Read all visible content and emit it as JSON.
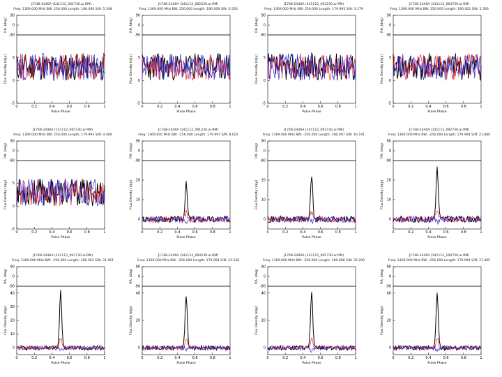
{
  "figure": {
    "description_rows": "Pulsar J1748-2446A pulse profiles, 3 rows x 4 columns"
  },
  "common": {
    "pa_label": "P.A. (deg)",
    "flux_label": "Flux Density (mJy)",
    "x_label": "Pulse Phase",
    "x_ticks": [
      "0",
      "0.2",
      "0.4",
      "0.6",
      "0.8",
      "1"
    ],
    "pa_ticks": [
      "-90",
      "0",
      "90"
    ],
    "series_colors": {
      "total": "#000000",
      "linear": "#e8212a",
      "circular": "#2b2bd6"
    }
  },
  "chart_data": [
    {
      "type": "line",
      "title": "J1748-2446A (141112_061730.ar.RM)…",
      "subtitle": "Freq: 1369.000 MHz BW: 256.000 Length: 180.008 S/N: 5.548",
      "xlim": [
        0,
        1
      ],
      "ylim": [
        -5,
        10
      ],
      "yticks": [
        "-5",
        "0",
        "5"
      ],
      "peak": 0,
      "seed": 11
    },
    {
      "type": "line",
      "title": "J1748-2446A (141112_062230.ar.RM)",
      "subtitle": "Freq: 1369.000 MHz BW: 256.000 Length: 180.008 S/N: 6.563",
      "xlim": [
        0,
        1
      ],
      "ylim": [
        -5,
        10
      ],
      "yticks": [
        "-5",
        "0",
        "5"
      ],
      "peak": 0,
      "seed": 23
    },
    {
      "type": "line",
      "title": "J1748-2446A (141112_063230.ar.RM)",
      "subtitle": "Freq: 1369.000 MHz BW: 256.000 Length: 179.995 S/N: 3.179",
      "xlim": [
        0,
        1
      ],
      "ylim": [
        -5,
        10
      ],
      "yticks": [
        "-5",
        "0",
        "5"
      ],
      "peak": 0,
      "seed": 37
    },
    {
      "type": "line",
      "title": "J1748-2446A (141112_064730.ar.RM)",
      "subtitle": "Freq: 1369.000 MHz BW: 256.000 Length: 180.002 S/N: 5.366",
      "xlim": [
        0,
        1
      ],
      "ylim": [
        -5,
        10
      ],
      "yticks": [
        "-5",
        "0",
        "5"
      ],
      "peak": 0,
      "seed": 41
    },
    {
      "type": "line",
      "title": "J1748-2446A (141112_065730.ar.RM)",
      "subtitle": "Freq: 1369.000 MHz BW: 256.000 Length: 179.993 S/N: 4.469",
      "xlim": [
        0,
        1
      ],
      "ylim": [
        -5,
        10
      ],
      "yticks": [
        "-5",
        "0",
        "5"
      ],
      "peak": 0,
      "seed": 53
    },
    {
      "type": "line",
      "title": "J1748-2446A (141112_091230.ar.RM)",
      "subtitle": "Freq: 1369.000 MHz BW: -256.000 Length: 179.997 S/N: 8.622",
      "xlim": [
        0,
        1
      ],
      "ylim": [
        -5,
        30
      ],
      "yticks": [
        "0",
        "10",
        "20"
      ],
      "peak": 18,
      "seed": 67
    },
    {
      "type": "line",
      "title": "J1748-2446A (141112_091730.ar.RM)",
      "subtitle": "Freq: 1369.000 MHz BW: -256.000 Length: 180.007 S/N: 16.191",
      "xlim": [
        0,
        1
      ],
      "ylim": [
        -5,
        30
      ],
      "yticks": [
        "0",
        "10",
        "20"
      ],
      "peak": 22,
      "seed": 71
    },
    {
      "type": "line",
      "title": "J1748-2446A (141112_092730.ar.RM)",
      "subtitle": "Freq: 1369.000 MHz BW: -256.000 Length: 179.994 S/N: 21.880",
      "xlim": [
        0,
        1
      ],
      "ylim": [
        -5,
        30
      ],
      "yticks": [
        "0",
        "10",
        "20"
      ],
      "peak": 26,
      "seed": 83
    },
    {
      "type": "line",
      "title": "J1748-2446A (141112_093730.ar.RM)",
      "subtitle": "Freq: 1369.000 MHz BW: -256.000 Length: 180.002 S/N: 31.961",
      "xlim": [
        0,
        1
      ],
      "ylim": [
        -5,
        45
      ],
      "yticks": [
        "0",
        "10",
        "20",
        "30",
        "40"
      ],
      "peak": 41,
      "seed": 97
    },
    {
      "type": "line",
      "title": "J1748-2446A (141112_094230.ar.RM)",
      "subtitle": "Freq: 1369.000 MHz BW: -256.000 Length: 179.994 S/N: 33.538",
      "xlim": [
        0,
        1
      ],
      "ylim": [
        -5,
        45
      ],
      "yticks": [
        "0",
        "20",
        "40"
      ],
      "peak": 38,
      "seed": 101
    },
    {
      "type": "line",
      "title": "J1748-2446A (141112_095730.ar.RM)",
      "subtitle": "Freq: 1369.000 MHz BW: -256.000 Length: 180.006 S/N: 35.299",
      "xlim": [
        0,
        1
      ],
      "ylim": [
        -5,
        45
      ],
      "yticks": [
        "0",
        "20",
        "40"
      ],
      "peak": 40,
      "seed": 113
    },
    {
      "type": "line",
      "title": "J1748-2446A (141112_100730.ar.RM)",
      "subtitle": "Freq: 1369.000 MHz BW: -256.000 Length: 179.994 S/N: 37.465",
      "xlim": [
        0,
        1
      ],
      "ylim": [
        -5,
        45
      ],
      "yticks": [
        "0",
        "20",
        "40"
      ],
      "peak": 39,
      "seed": 127
    }
  ]
}
